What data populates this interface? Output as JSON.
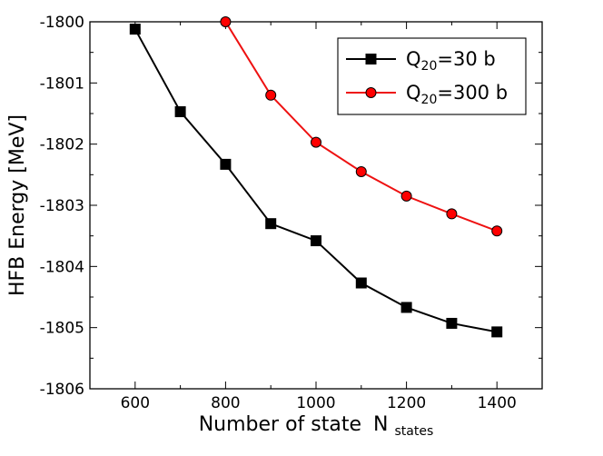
{
  "chart_data": {
    "type": "line",
    "title": "",
    "xlabel": "Number of state",
    "xlabel_symbol": "N",
    "xlabel_subscript": "states",
    "ylabel": "HFB Energy [MeV]",
    "xlim": [
      500,
      1500
    ],
    "ylim": [
      -1806,
      -1800
    ],
    "x_ticks": [
      600,
      800,
      1000,
      1200,
      1400
    ],
    "x_tick_labels": [
      "600",
      "800",
      "1000",
      "1200",
      "1400"
    ],
    "y_ticks": [
      -1806,
      -1805,
      -1804,
      -1803,
      -1802,
      -1801,
      -1800
    ],
    "y_tick_labels": [
      "-1806",
      "-1805",
      "-1804",
      "-1803",
      "-1802",
      "-1801",
      "-1800"
    ],
    "grid": false,
    "legend_position": "top-right",
    "series": [
      {
        "name": "Q20=30 b",
        "legend_symbol": "Q",
        "legend_subscript": "20",
        "legend_rest": "=30 b",
        "color": "#000000",
        "marker": "square",
        "x": [
          600,
          700,
          800,
          900,
          1000,
          1100,
          1200,
          1300,
          1400
        ],
        "values": [
          -1800.12,
          -1801.47,
          -1802.33,
          -1803.3,
          -1803.58,
          -1804.27,
          -1804.67,
          -1804.93,
          -1805.07
        ]
      },
      {
        "name": "Q20=300 b",
        "legend_symbol": "Q",
        "legend_subscript": "20",
        "legend_rest": "=300 b",
        "color": "#ff0000",
        "marker": "circle",
        "x": [
          800,
          900,
          1000,
          1100,
          1200,
          1300,
          1400
        ],
        "values": [
          -1800.0,
          -1801.2,
          -1801.97,
          -1802.45,
          -1802.85,
          -1803.14,
          -1803.42
        ]
      }
    ]
  }
}
